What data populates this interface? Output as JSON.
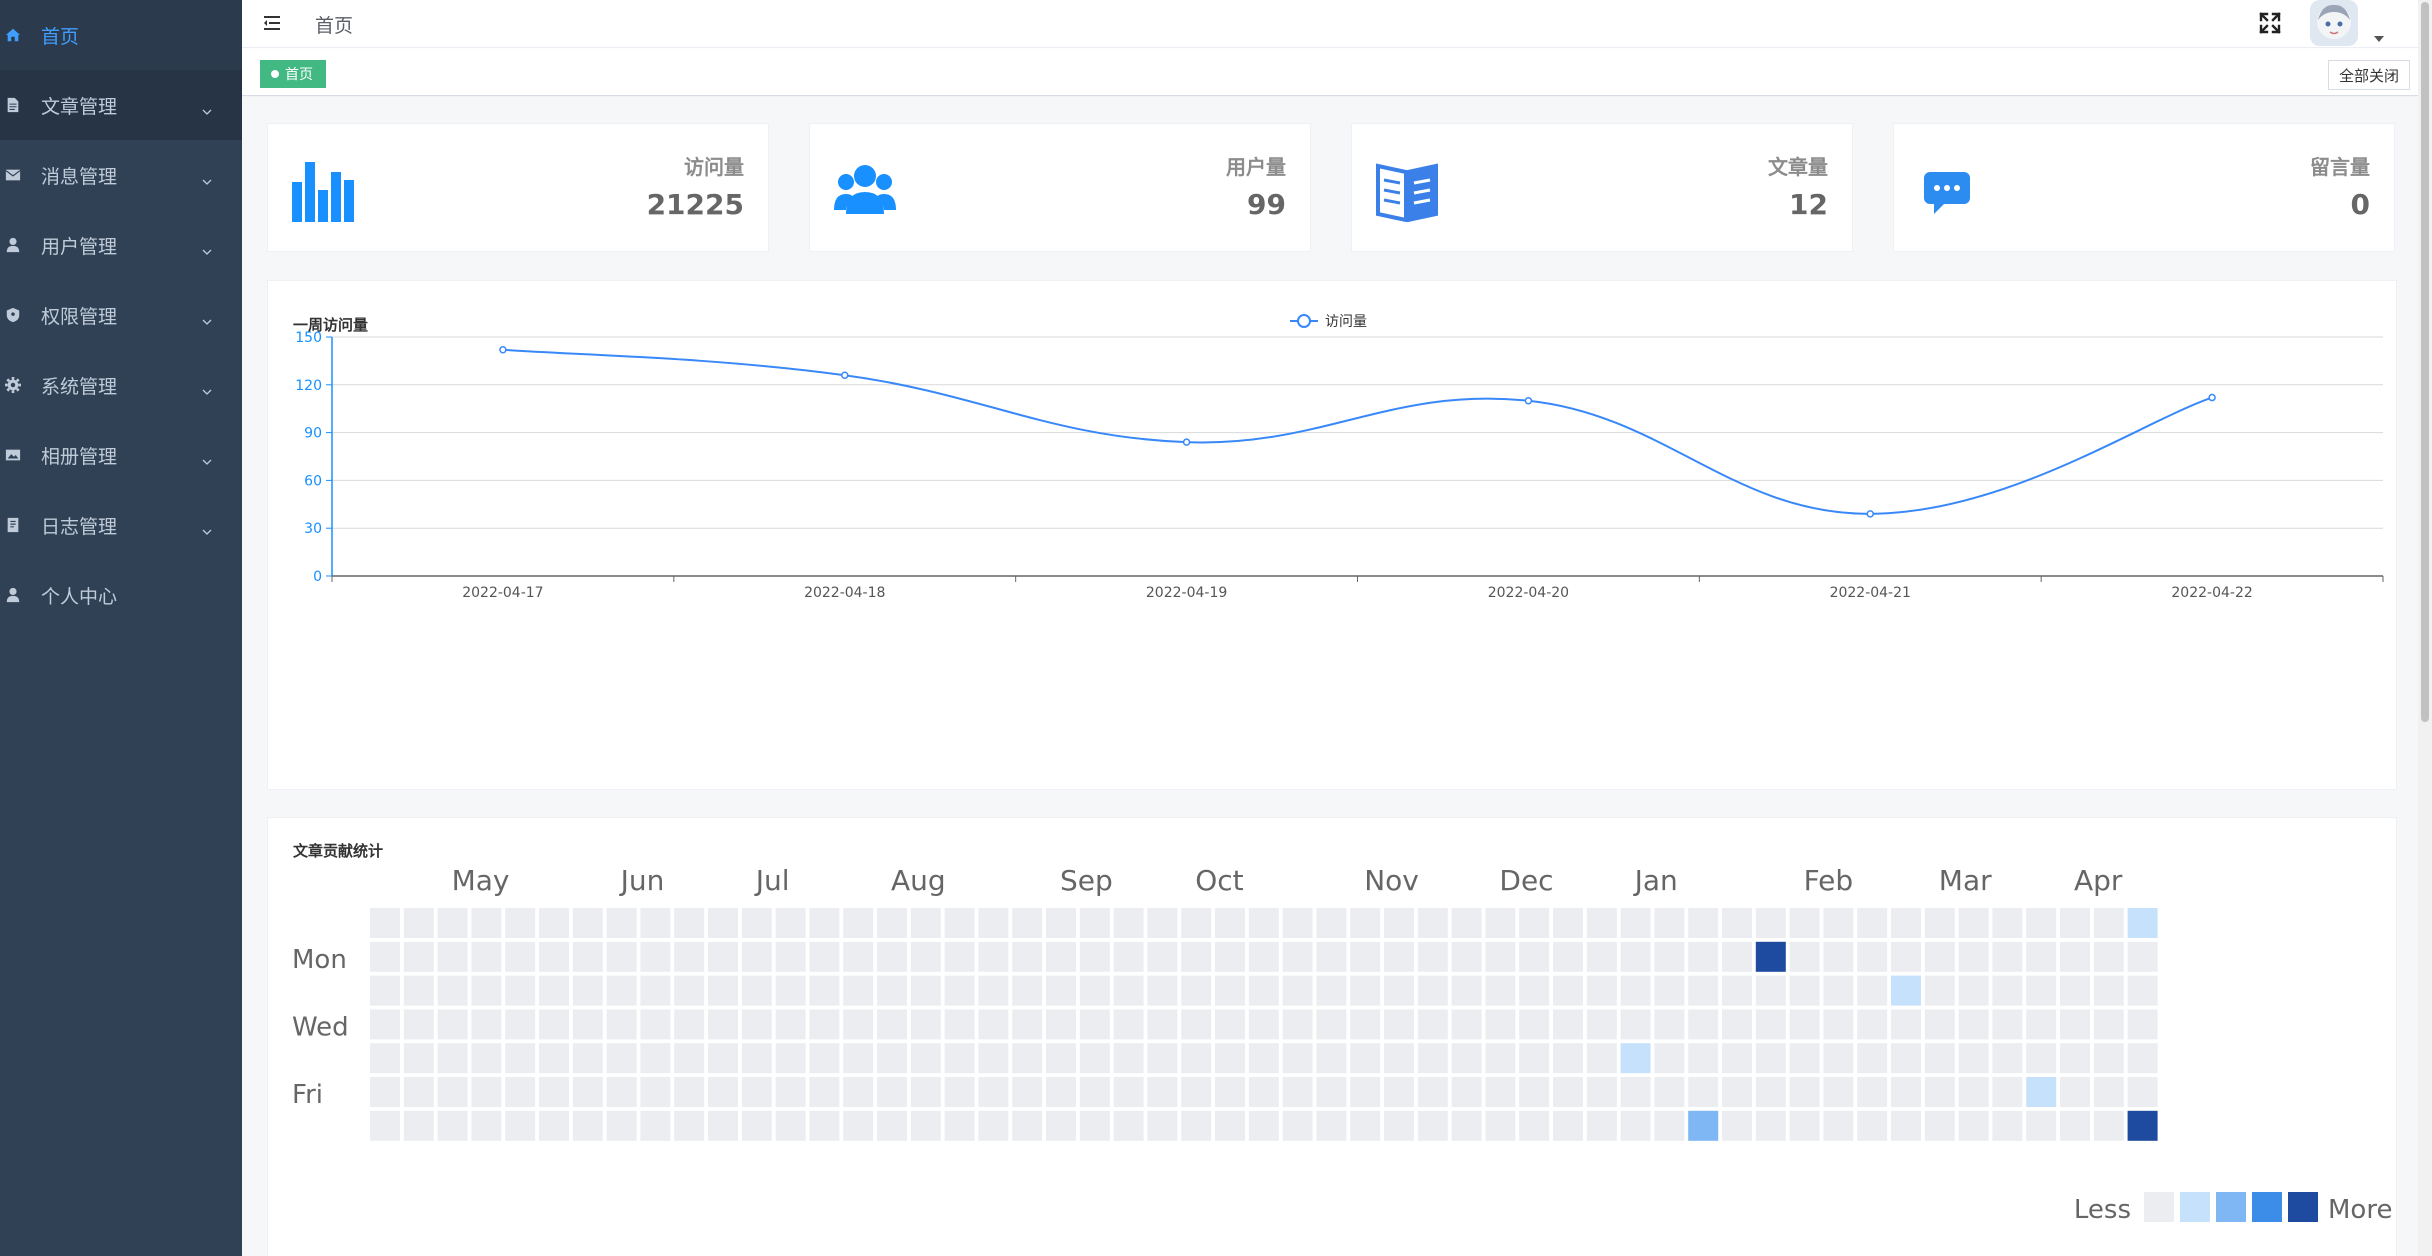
{
  "sidebar": {
    "items": [
      {
        "label": "首页",
        "icon": "home-icon",
        "active": true,
        "has_arrow": false
      },
      {
        "label": "文章管理",
        "icon": "document-icon",
        "has_arrow": true
      },
      {
        "label": "消息管理",
        "icon": "message-icon",
        "has_arrow": true
      },
      {
        "label": "用户管理",
        "icon": "user-icon",
        "has_arrow": true
      },
      {
        "label": "权限管理",
        "icon": "shield-icon",
        "has_arrow": true
      },
      {
        "label": "系统管理",
        "icon": "gear-icon",
        "has_arrow": true
      },
      {
        "label": "相册管理",
        "icon": "picture-icon",
        "has_arrow": true
      },
      {
        "label": "日志管理",
        "icon": "log-icon",
        "has_arrow": true
      },
      {
        "label": "个人中心",
        "icon": "user-icon",
        "has_arrow": false
      }
    ]
  },
  "navbar": {
    "breadcrumb": "首页"
  },
  "tags": {
    "active_tag": "首页",
    "close_all": "全部关闭"
  },
  "stats": [
    {
      "label": "访问量",
      "value": "21225",
      "icon": "bar-chart-icon",
      "color": "#1890ff"
    },
    {
      "label": "用户量",
      "value": "99",
      "icon": "users-icon",
      "color": "#1890ff"
    },
    {
      "label": "文章量",
      "value": "12",
      "icon": "book-icon",
      "color": "#3a80e8"
    },
    {
      "label": "留言量",
      "value": "0",
      "icon": "chat-icon",
      "color": "#2d8cf0"
    }
  ],
  "line_chart": {
    "title": "一周访问量"
  },
  "chart_data": [
    {
      "type": "line",
      "title": "一周访问量",
      "legend": "top-center",
      "x": [
        "2022-04-17",
        "2022-04-18",
        "2022-04-19",
        "2022-04-20",
        "2022-04-21",
        "2022-04-22"
      ],
      "series": [
        {
          "name": "访问量",
          "values": [
            142,
            126,
            84,
            110,
            39,
            112
          ],
          "color": "#3888fa",
          "smooth": true
        }
      ],
      "ylim": [
        0,
        150
      ],
      "yticks": [
        0,
        30,
        60,
        90,
        120,
        150
      ],
      "grid": true
    },
    {
      "type": "heatmap",
      "title": "文章贡献统计",
      "months": [
        "May",
        "Jun",
        "Jul",
        "Aug",
        "Sep",
        "Oct",
        "Nov",
        "Dec",
        "Jan",
        "Feb",
        "Mar",
        "Apr"
      ],
      "month_start_weeks": [
        2,
        7,
        11,
        15,
        20,
        24,
        29,
        33,
        37,
        42,
        46,
        50
      ],
      "day_labels": [
        "",
        "Mon",
        "",
        "Wed",
        "",
        "Fri",
        ""
      ],
      "weeks": 53,
      "active_cells": [
        {
          "week": 52,
          "day": 0,
          "level": 1
        },
        {
          "week": 41,
          "day": 1,
          "level": 4
        },
        {
          "week": 45,
          "day": 2,
          "level": 1
        },
        {
          "week": 37,
          "day": 4,
          "level": 1
        },
        {
          "week": 49,
          "day": 5,
          "level": 1
        },
        {
          "week": 39,
          "day": 6,
          "level": 2
        },
        {
          "week": 52,
          "day": 6,
          "level": 4
        }
      ],
      "legend_less": "Less",
      "legend_more": "More",
      "level_colors": [
        "#ebedf0",
        "#c6e1fb",
        "#7fb7f5",
        "#3c8de8",
        "#1e4aa0"
      ]
    }
  ]
}
